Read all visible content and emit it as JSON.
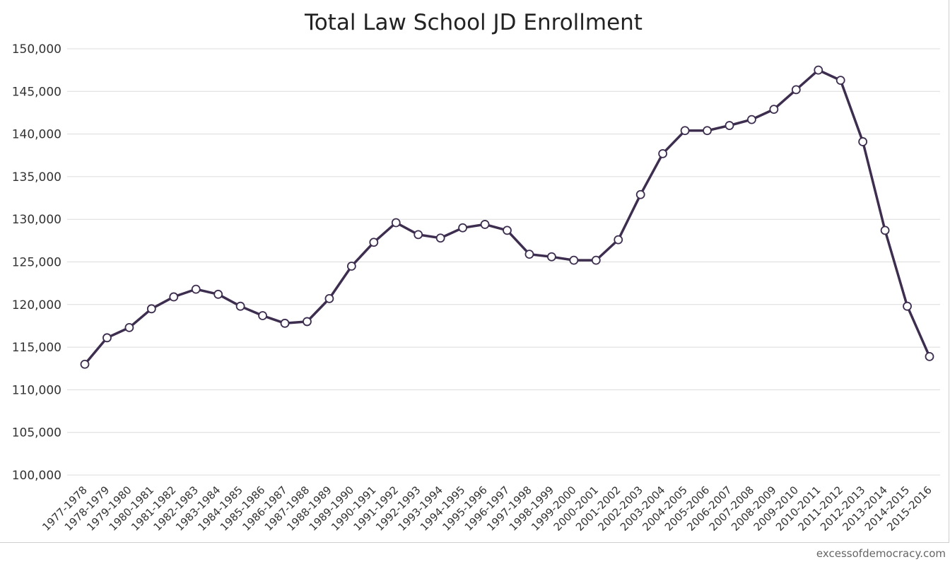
{
  "watermark": "excessofdemocracy.com",
  "colors": {
    "line": "#3d2e4f",
    "marker_fill": "#ffffff",
    "grid": "#dcdcdc"
  },
  "chart_data": {
    "type": "line",
    "title": "Total Law School JD Enrollment",
    "xlabel": "",
    "ylabel": "",
    "ylim": [
      100000,
      150000
    ],
    "yticks": [
      100000,
      105000,
      110000,
      115000,
      120000,
      125000,
      130000,
      135000,
      140000,
      145000,
      150000
    ],
    "ytick_labels": [
      "100,000",
      "105,000",
      "110,000",
      "115,000",
      "120,000",
      "125,000",
      "130,000",
      "135,000",
      "140,000",
      "145,000",
      "150,000"
    ],
    "grid": true,
    "legend": "none",
    "categories": [
      "1977-1978",
      "1978-1979",
      "1979-1980",
      "1980-1981",
      "1981-1982",
      "1982-1983",
      "1983-1984",
      "1984-1985",
      "1985-1986",
      "1986-1987",
      "1987-1988",
      "1988-1989",
      "1989-1990",
      "1990-1991",
      "1991-1992",
      "1992-1993",
      "1993-1994",
      "1994-1995",
      "1995-1996",
      "1996-1997",
      "1997-1998",
      "1998-1999",
      "1999-2000",
      "2000-2001",
      "2001-2002",
      "2002-2003",
      "2003-2004",
      "2004-2005",
      "2005-2006",
      "2006-2007",
      "2007-2008",
      "2008-2009",
      "2009-2010",
      "2010-2011",
      "2011-2012",
      "2012-2013",
      "2013-2014",
      "2014-2015",
      "2015-2016"
    ],
    "series": [
      {
        "values": [
          113000,
          116100,
          117300,
          119500,
          120900,
          121800,
          121200,
          119800,
          118700,
          117800,
          118000,
          120700,
          124500,
          127300,
          129600,
          128200,
          127800,
          129000,
          129400,
          128700,
          125900,
          125600,
          125200,
          125200,
          127600,
          132900,
          137700,
          140400,
          140400,
          141000,
          141700,
          142900,
          145200,
          147500,
          146300,
          139100,
          128700,
          119800,
          113900
        ]
      }
    ]
  }
}
